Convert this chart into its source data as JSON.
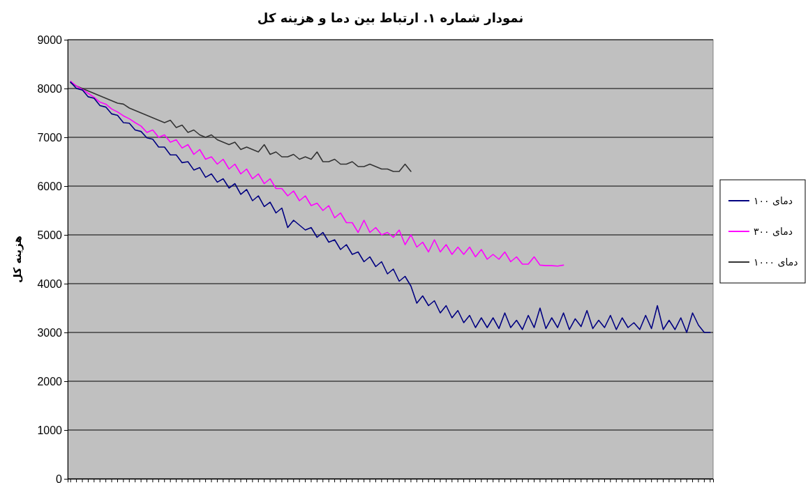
{
  "chart_data": {
    "type": "line",
    "title": "نمودار شماره ۱. ارتباط بین دما و هزینه کل",
    "ylabel": "هزینه کل",
    "categories": [
      null,
      null,
      null,
      null,
      null,
      null,
      null,
      null,
      null,
      null,
      null,
      null,
      null,
      null,
      null,
      null,
      null,
      null,
      null,
      null,
      null,
      null,
      null,
      null,
      null,
      null,
      null,
      null,
      null,
      null,
      null,
      null,
      null,
      null,
      null,
      null,
      null,
      null,
      null,
      null,
      null,
      null,
      null,
      null,
      null,
      null,
      null,
      null,
      null,
      null,
      null,
      null,
      null,
      null,
      null,
      null,
      null,
      null,
      null,
      null,
      null,
      null,
      null,
      null,
      null,
      null,
      null,
      null,
      null,
      null,
      null,
      null,
      null,
      null,
      null,
      null,
      null,
      null,
      null,
      null,
      null,
      null,
      null,
      null,
      null,
      null,
      null,
      null,
      null,
      null,
      null,
      null,
      null,
      null,
      null,
      null,
      null,
      null,
      null,
      null,
      null,
      null,
      null,
      null,
      null,
      null,
      null,
      null,
      null,
      null
    ],
    "series": [
      {
        "name": "دمای ۱۰۰",
        "color": "#000080",
        "values": [
          8130,
          8000,
          7970,
          7830,
          7800,
          7650,
          7620,
          7480,
          7450,
          7300,
          7290,
          7150,
          7120,
          6990,
          6960,
          6800,
          6800,
          6640,
          6640,
          6480,
          6500,
          6330,
          6380,
          6180,
          6250,
          6080,
          6150,
          5960,
          6050,
          5830,
          5930,
          5700,
          5800,
          5580,
          5670,
          5450,
          5550,
          5150,
          5300,
          5200,
          5100,
          5150,
          4950,
          5050,
          4850,
          4900,
          4700,
          4800,
          4600,
          4650,
          4450,
          4550,
          4350,
          4450,
          4200,
          4300,
          4050,
          4150,
          3950,
          3600,
          3750,
          3550,
          3650,
          3400,
          3550,
          3300,
          3450,
          3200,
          3350,
          3100,
          3300,
          3100,
          3300,
          3080,
          3400,
          3100,
          3250,
          3060,
          3350,
          3100,
          3500,
          3080,
          3300,
          3100,
          3400,
          3060,
          3280,
          3120,
          3450,
          3080,
          3250,
          3100,
          3350,
          3060,
          3300,
          3100,
          3200,
          3060,
          3350,
          3080,
          3550,
          3060,
          3250,
          3060,
          3300,
          3000,
          3400,
          3150,
          3000,
          3000
        ]
      },
      {
        "name": "دمای ۳۰۰",
        "color": "#ff00ff",
        "values": [
          8150,
          8050,
          7980,
          7900,
          7820,
          7720,
          7680,
          7580,
          7520,
          7440,
          7380,
          7300,
          7230,
          7100,
          7150,
          7000,
          7050,
          6900,
          6950,
          6780,
          6850,
          6650,
          6750,
          6550,
          6600,
          6450,
          6550,
          6350,
          6450,
          6250,
          6350,
          6150,
          6250,
          6050,
          6150,
          5950,
          5950,
          5800,
          5900,
          5700,
          5800,
          5600,
          5650,
          5500,
          5600,
          5350,
          5450,
          5250,
          5250,
          5050,
          5300,
          5050,
          5150,
          5000,
          5050,
          4950,
          5100,
          4800,
          5000,
          4750,
          4850,
          4650,
          4900,
          4650,
          4800,
          4600,
          4750,
          4600,
          4750,
          4550,
          4700,
          4500,
          4600,
          4500,
          4650,
          4450,
          4550,
          4400,
          4400,
          4550,
          4380,
          4370,
          4370,
          4360,
          4380,
          null,
          null,
          null,
          null,
          null,
          null,
          null,
          null,
          null,
          null,
          null,
          null,
          null,
          null,
          null,
          null,
          null,
          null,
          null,
          null,
          null,
          null,
          null,
          null,
          null
        ]
      },
      {
        "name": "دمای ۱۰۰۰",
        "color": "#333333",
        "values": [
          8120,
          8050,
          8000,
          7950,
          7900,
          7850,
          7800,
          7750,
          7700,
          7680,
          7600,
          7550,
          7500,
          7450,
          7400,
          7350,
          7300,
          7350,
          7200,
          7250,
          7100,
          7150,
          7050,
          7000,
          7050,
          6950,
          6900,
          6850,
          6900,
          6750,
          6800,
          6750,
          6700,
          6850,
          6650,
          6700,
          6600,
          6600,
          6650,
          6550,
          6600,
          6550,
          6700,
          6500,
          6500,
          6550,
          6450,
          6450,
          6500,
          6400,
          6400,
          6450,
          6400,
          6350,
          6350,
          6300,
          6300,
          6450,
          6300,
          null,
          null,
          null,
          null,
          null,
          null,
          null,
          null,
          null,
          null,
          null,
          null,
          null,
          null,
          null,
          null,
          null,
          null,
          null,
          null,
          null,
          null,
          null,
          null,
          null,
          null,
          null,
          null,
          null,
          null,
          null,
          null,
          null,
          null,
          null,
          null,
          null,
          null,
          null,
          null,
          null,
          null,
          null,
          null,
          null,
          null,
          null,
          null,
          null,
          null,
          null
        ]
      }
    ],
    "ylim": [
      0,
      9000
    ],
    "yticks": [
      0,
      1000,
      2000,
      3000,
      4000,
      5000,
      6000,
      7000,
      8000,
      9000
    ],
    "grid": "y",
    "legend": "right"
  }
}
